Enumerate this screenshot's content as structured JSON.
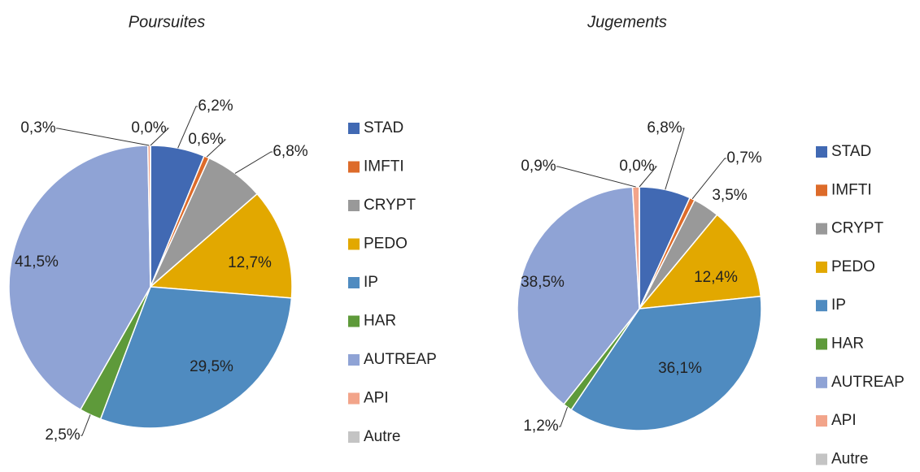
{
  "chart_data": [
    {
      "type": "pie",
      "title": "Poursuites",
      "categories": [
        "STAD",
        "IMFTI",
        "CRYPT",
        "PEDO",
        "IP",
        "HAR",
        "AUTREAP",
        "API",
        "Autre"
      ],
      "values": [
        6.2,
        0.6,
        6.8,
        12.7,
        29.5,
        2.5,
        41.5,
        0.3,
        0.0
      ],
      "value_labels": [
        "6,2%",
        "0,6%",
        "6,8%",
        "12,7%",
        "29,5%",
        "2,5%",
        "41,5%",
        "0,3%",
        "0,0%"
      ],
      "colors": [
        "#4169b3",
        "#dd6b2a",
        "#999999",
        "#e2a800",
        "#4f8bc0",
        "#5e9a3a",
        "#8fa3d5",
        "#f2a48a",
        "#c4c4c4"
      ],
      "legend": "right"
    },
    {
      "type": "pie",
      "title": "Jugements",
      "categories": [
        "STAD",
        "IMFTI",
        "CRYPT",
        "PEDO",
        "IP",
        "HAR",
        "AUTREAP",
        "API",
        "Autre"
      ],
      "values": [
        6.8,
        0.7,
        3.5,
        12.4,
        36.1,
        1.2,
        38.5,
        0.9,
        0.0
      ],
      "value_labels": [
        "6,8%",
        "0,7%",
        "3,5%",
        "12,4%",
        "36,1%",
        "1,2%",
        "38,5%",
        "0,9%",
        "0,0%"
      ],
      "colors": [
        "#4169b3",
        "#dd6b2a",
        "#999999",
        "#e2a800",
        "#4f8bc0",
        "#5e9a3a",
        "#8fa3d5",
        "#f2a48a",
        "#c4c4c4"
      ],
      "legend": "right"
    }
  ]
}
